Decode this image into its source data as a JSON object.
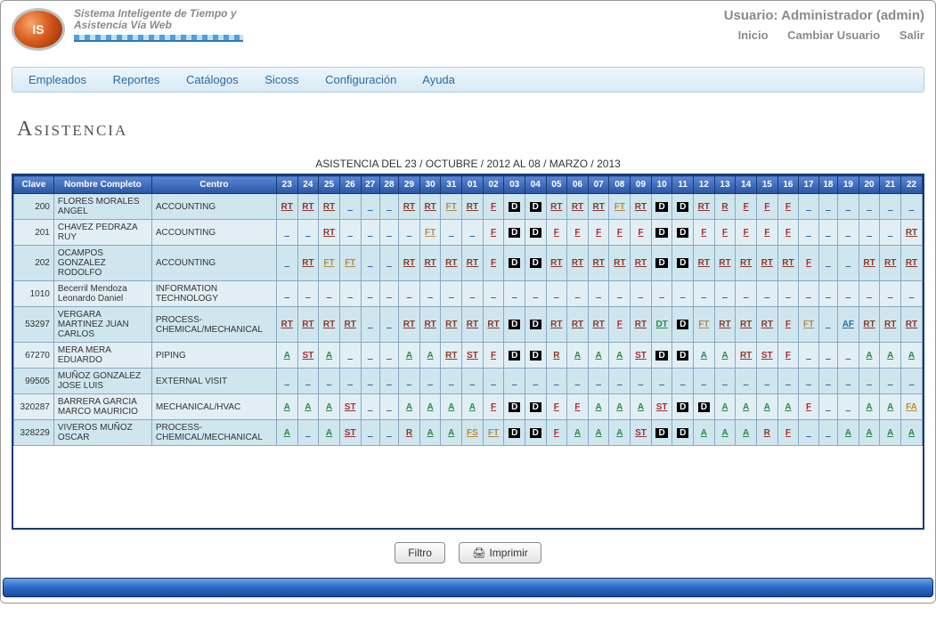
{
  "header": {
    "logo_text": "IS",
    "tagline1": "Sistema Inteligente de Tiempo y",
    "tagline2": "Asistencia Vía Web",
    "user_label": "Usuario: Administrador (admin)",
    "links": {
      "inicio": "Inicio",
      "cambiar": "Cambiar Usuario",
      "salir": "Salir"
    }
  },
  "menu": {
    "empleados": "Empleados",
    "reportes": "Reportes",
    "catalogos": "Catálogos",
    "sicoss": "Sicoss",
    "configuracion": "Configuración",
    "ayuda": "Ayuda"
  },
  "page_title": "Asistencia",
  "subtitle": "ASISTENCIA DEL 23 / OCTUBRE / 2012 AL 08 / MARZO / 2013",
  "columns": {
    "clave": "Clave",
    "nombre": "Nombre Completo",
    "centro": "Centro"
  },
  "day_headers": [
    "23",
    "24",
    "25",
    "26",
    "27",
    "28",
    "29",
    "30",
    "31",
    "01",
    "02",
    "03",
    "04",
    "05",
    "06",
    "07",
    "08",
    "09",
    "10",
    "11",
    "12",
    "13",
    "14",
    "15",
    "16",
    "17",
    "18",
    "19",
    "20",
    "21",
    "22"
  ],
  "code_colors": {
    "RT": "#8a3a2a",
    "FT": "#b58a4a",
    "F": "#b02a2a",
    "D": "#000000",
    "A": "#2a8a4a",
    "ST": "#a03030",
    "R": "#8a3a2a",
    "FS": "#c08a2a",
    "DT": "#2a8a4a",
    "AF": "#2a6aa2",
    "FA": "#c08a2a",
    "_": "#2a6aa2"
  },
  "rows": [
    {
      "clave": "200",
      "nombre": "FLORES MORALES ANGEL",
      "centro": "ACCOUNTING",
      "days": [
        "RT",
        "RT",
        "RT",
        "_",
        "_",
        "_",
        "RT",
        "RT",
        "FT",
        "RT",
        "F",
        "D",
        "D",
        "RT",
        "RT",
        "RT",
        "FT",
        "RT",
        "D",
        "D",
        "RT",
        "R",
        "F",
        "F",
        "F",
        "_",
        "_",
        "_",
        "_",
        "_",
        "_"
      ]
    },
    {
      "clave": "201",
      "nombre": "CHAVEZ PEDRAZA RUY",
      "centro": "ACCOUNTING",
      "days": [
        "_",
        "_",
        "RT",
        "_",
        "_",
        "_",
        "_",
        "FT",
        "_",
        "_",
        "F",
        "D",
        "D",
        "F",
        "F",
        "F",
        "F",
        "F",
        "D",
        "D",
        "F",
        "F",
        "F",
        "F",
        "F",
        "_",
        "_",
        "_",
        "_",
        "_",
        "RT"
      ]
    },
    {
      "clave": "202",
      "nombre": "OCAMPOS GONZALEZ RODOLFO",
      "centro": "ACCOUNTING",
      "days": [
        "_",
        "RT",
        "FT",
        "FT",
        "_",
        "_",
        "RT",
        "RT",
        "RT",
        "RT",
        "F",
        "D",
        "D",
        "RT",
        "RT",
        "RT",
        "RT",
        "RT",
        "D",
        "D",
        "RT",
        "RT",
        "RT",
        "RT",
        "RT",
        "F",
        "_",
        "_",
        "RT",
        "RT",
        "RT"
      ]
    },
    {
      "clave": "1010",
      "nombre": "Becerril Mendoza Leonardo Daniel",
      "centro": "INFORMATION TECHNOLOGY",
      "days": [
        "_",
        "_",
        "_",
        "_",
        "_",
        "_",
        "_",
        "_",
        "_",
        "_",
        "_",
        "_",
        "_",
        "_",
        "_",
        "_",
        "_",
        "_",
        "_",
        "_",
        "_",
        "_",
        "_",
        "_",
        "_",
        "_",
        "_",
        "_",
        "_",
        "_",
        "_"
      ]
    },
    {
      "clave": "53297",
      "nombre": "VERGARA MARTINEZ JUAN CARLOS",
      "centro": "PROCESS-CHEMICAL/MECHANICAL",
      "days": [
        "RT",
        "RT",
        "RT",
        "RT",
        "_",
        "_",
        "RT",
        "RT",
        "RT",
        "RT",
        "RT",
        "D",
        "D",
        "RT",
        "RT",
        "RT",
        "F",
        "RT",
        "DT",
        "D",
        "FT",
        "RT",
        "RT",
        "RT",
        "F",
        "FT",
        "_",
        "AF",
        "RT",
        "RT",
        "RT"
      ]
    },
    {
      "clave": "67270",
      "nombre": "MERA MERA EDUARDO",
      "centro": "PIPING",
      "days": [
        "A",
        "ST",
        "A",
        "_",
        "_",
        "_",
        "A",
        "A",
        "RT",
        "ST",
        "F",
        "D",
        "D",
        "R",
        "A",
        "A",
        "A",
        "ST",
        "D",
        "D",
        "A",
        "A",
        "RT",
        "ST",
        "F",
        "_",
        "_",
        "_",
        "A",
        "A",
        "A"
      ]
    },
    {
      "clave": "99505",
      "nombre": "MUÑOZ GONZALEZ JOSE LUIS",
      "centro": "EXTERNAL VISIT",
      "days": [
        "_",
        "_",
        "_",
        "_",
        "_",
        "_",
        "_",
        "_",
        "_",
        "_",
        "_",
        "_",
        "_",
        "_",
        "_",
        "_",
        "_",
        "_",
        "_",
        "_",
        "_",
        "_",
        "_",
        "_",
        "_",
        "_",
        "_",
        "_",
        "_",
        "_",
        "_"
      ]
    },
    {
      "clave": "320287",
      "nombre": "BARRERA GARCIA MARCO MAURICIO",
      "centro": "MECHANICAL/HVAC",
      "days": [
        "A",
        "A",
        "A",
        "ST",
        "_",
        "_",
        "A",
        "A",
        "A",
        "A",
        "F",
        "D",
        "D",
        "F",
        "F",
        "A",
        "A",
        "A",
        "ST",
        "D",
        "D",
        "A",
        "A",
        "A",
        "A",
        "F",
        "_",
        "_",
        "A",
        "A",
        "FA"
      ]
    },
    {
      "clave": "328229",
      "nombre": "VIVEROS MUÑOZ OSCAR",
      "centro": "PROCESS-CHEMICAL/MECHANICAL",
      "days": [
        "A",
        "_",
        "A",
        "ST",
        "_",
        "_",
        "R",
        "A",
        "A",
        "FS",
        "FT",
        "D",
        "D",
        "F",
        "A",
        "A",
        "A",
        "ST",
        "D",
        "D",
        "A",
        "A",
        "A",
        "R",
        "F",
        "_",
        "_",
        "A",
        "A",
        "A",
        "A"
      ]
    }
  ],
  "buttons": {
    "filtro": "Filtro",
    "imprimir": "Imprimir"
  }
}
